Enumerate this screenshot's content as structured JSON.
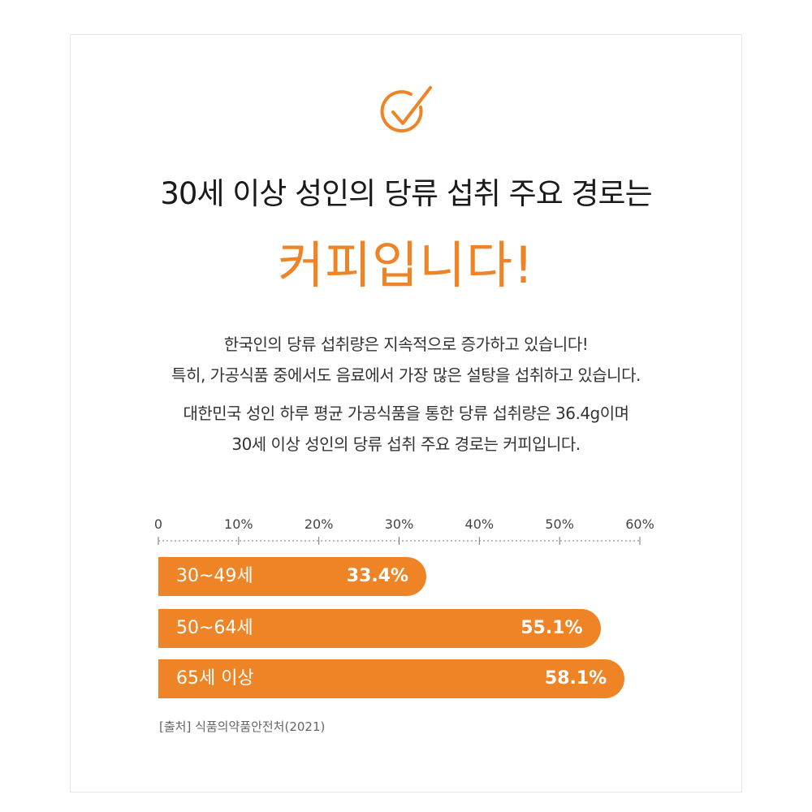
{
  "heading": {
    "line1": "30세 이상 성인의 당류 섭취 주요 경로는",
    "line2": "커피입니다!"
  },
  "description": [
    "한국인의 당류 섭취량은 지속적으로 증가하고 있습니다!",
    "특히, 가공식품 중에서도 음료에서 가장 많은 설탕을 섭취하고 있습니다.",
    "대한민국 성인 하루 평균 가공식품을 통한 당류 섭취량은 36.4g이며",
    "30세 이상 성인의 당류 섭취 주요 경로는 커피입니다."
  ],
  "icon": "checkmark-circle-icon",
  "colors": {
    "accent": "#ef8426",
    "text": "#1a1a1a"
  },
  "chart_data": {
    "type": "bar",
    "orientation": "horizontal",
    "categories": [
      "30~49세",
      "50~64세",
      "65세 이상"
    ],
    "values": [
      33.4,
      55.1,
      58.1
    ],
    "value_labels": [
      "33.4%",
      "55.1%",
      "58.1%"
    ],
    "x_ticks": [
      "0",
      "10%",
      "20%",
      "30%",
      "40%",
      "50%",
      "60%"
    ],
    "xlim": [
      0,
      60
    ],
    "grid": false,
    "axis_position": "top"
  },
  "source": "[출처] 식품의약품안전처(2021)"
}
